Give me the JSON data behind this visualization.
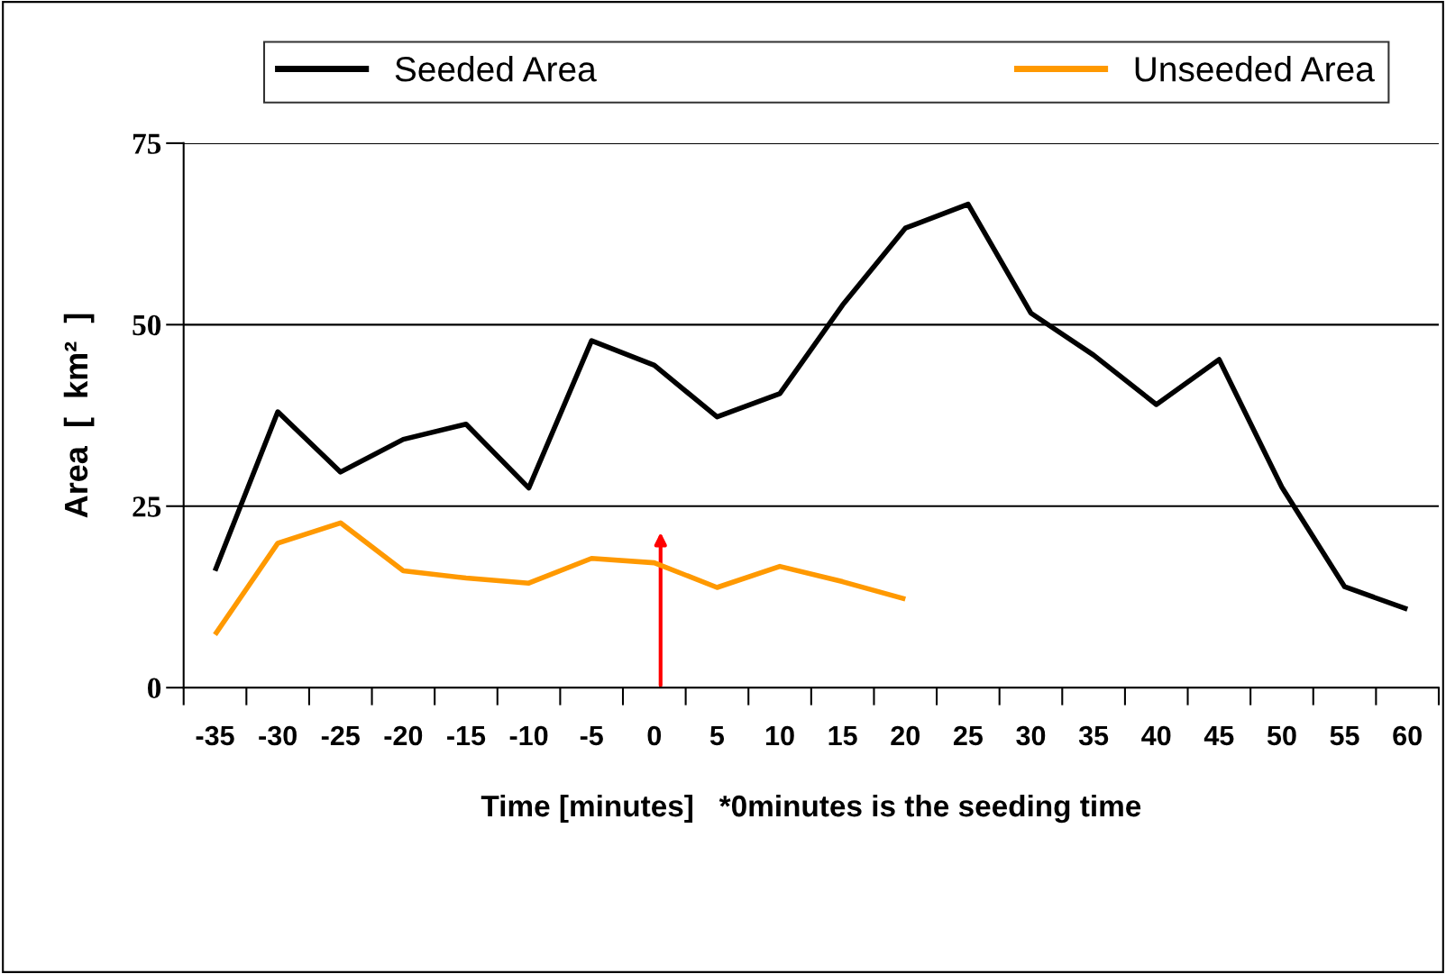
{
  "chart_data": {
    "type": "line",
    "xlabel": "Time [minutes]   *0minutes is the seeding time",
    "ylabel": "Area  [  km²  ]",
    "categories": [
      "-35",
      "-30",
      "-25",
      "-20",
      "-15",
      "-10",
      "-5",
      "0",
      "5",
      "10",
      "15",
      "20",
      "25",
      "30",
      "35",
      "40",
      "45",
      "50",
      "55",
      "60"
    ],
    "series": [
      {
        "name": "Seeded Area",
        "color": "#000000",
        "values": [
          16.1,
          38.0,
          29.7,
          34.2,
          36.3,
          27.5,
          47.8,
          44.4,
          37.3,
          40.5,
          52.7,
          63.3,
          66.6,
          51.6,
          45.8,
          39.0,
          45.2,
          27.6,
          13.9,
          10.8
        ]
      },
      {
        "name": "Unseeded Area",
        "color": "#ff9900",
        "values": [
          7.3,
          19.9,
          22.7,
          16.1,
          15.1,
          14.4,
          17.8,
          17.2,
          13.8,
          16.7,
          14.6,
          12.2,
          null,
          null,
          null,
          null,
          null,
          null,
          null,
          null
        ]
      }
    ],
    "ylim": [
      0,
      75
    ],
    "yticks": [
      0,
      25,
      50,
      75
    ],
    "grid": "y",
    "legend": "top",
    "marker": "none",
    "line_style": "solid"
  }
}
